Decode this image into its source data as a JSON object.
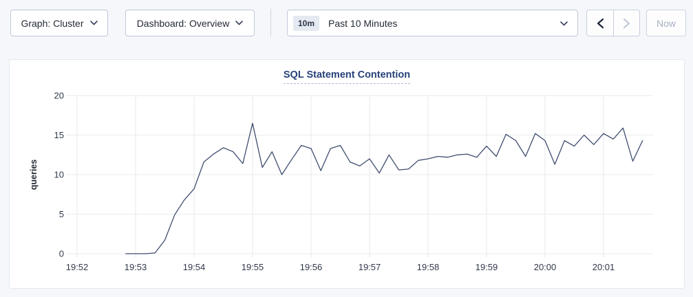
{
  "toolbar": {
    "graph_dropdown_label": "Graph: Cluster",
    "dashboard_dropdown_label": "Dashboard: Overview",
    "time_badge": "10m",
    "time_label": "Past 10 Minutes",
    "back_icon": "chevron-left",
    "forward_icon": "chevron-right",
    "now_label": "Now"
  },
  "colors": {
    "page_background": "#f5f7fa",
    "card_background": "#ffffff",
    "title": "#274178",
    "series_line": "#3e4c6e",
    "gridline": "#e9eaee",
    "control_border": "#c0c6d9",
    "disabled_text": "#a7aebf"
  },
  "chart_data": {
    "type": "line",
    "title": "SQL Statement Contention",
    "xlabel": "",
    "ylabel": "queries",
    "ylim": [
      0,
      20
    ],
    "yticks": [
      0,
      5,
      10,
      15,
      20
    ],
    "xticks": [
      "19:52",
      "19:53",
      "19:54",
      "19:55",
      "19:56",
      "19:57",
      "19:58",
      "19:59",
      "20:00",
      "20:01"
    ],
    "grid": true,
    "legend": "none",
    "x_start": "19:52:50",
    "x_interval_seconds": 10,
    "series": [
      {
        "name": "SQL Statement Contention",
        "color": "#3e4c6e",
        "unit": "queries",
        "values": [
          0,
          0,
          0,
          0.1,
          1.7,
          4.9,
          6.8,
          8.2,
          11.6,
          12.6,
          13.4,
          12.9,
          11.4,
          16.5,
          10.9,
          12.9,
          10,
          11.9,
          13.7,
          13.3,
          10.5,
          13.3,
          13.7,
          11.6,
          11.1,
          12,
          10.2,
          12.5,
          10.6,
          10.7,
          11.8,
          12,
          12.3,
          12.2,
          12.5,
          12.6,
          12.2,
          13.6,
          12.3,
          15.1,
          14.3,
          12.3,
          15.2,
          14.3,
          11.3,
          14.3,
          13.6,
          15,
          13.8,
          15.2,
          14.5,
          15.9,
          11.7,
          14.3
        ]
      }
    ]
  }
}
